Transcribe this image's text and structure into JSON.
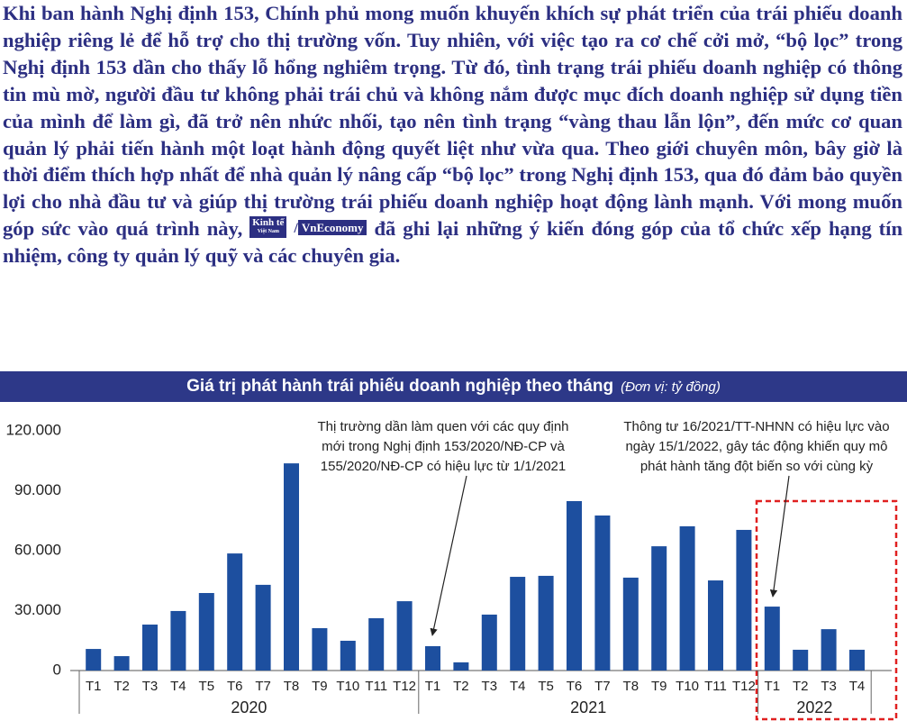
{
  "paragraph": {
    "before": "Khi ban hành Nghị định 153, Chính phủ mong muốn khuyến khích sự phát triển của trái phiếu doanh nghiệp riêng lẻ để hỗ trợ cho thị trường vốn. Tuy nhiên, với việc tạo ra cơ chế cởi mở, “bộ lọc” trong Nghị định 153 dần cho thấy lỗ hổng nghiêm trọng. Từ đó, tình trạng trái phiếu doanh nghiệp có thông tin mù mờ, người đầu tư không phải trái chủ và không nắm được mục đích doanh nghiệp sử dụng tiền của mình để làm gì, đã trở nên nhức nhối, tạo nên tình trạng “vàng thau lẫn lộn”, đến mức cơ quan quản lý phải tiến hành một loạt hành động quyết liệt như vừa qua. Theo giới chuyên môn, bây giờ là thời điểm thích hợp nhất để nhà quản lý nâng cấp “bộ lọc” trong Nghị định 153, qua đó đảm bảo quyền lợi cho nhà đầu tư và giúp thị trường trái phiếu doanh nghiệp hoạt động lành mạnh. Với mong muốn góp sức vào quá trình này,",
    "logo1_top": "Kinh tế",
    "logo1_bottom": "Việt Nam",
    "slash": "/",
    "logo2": "VnEconomy",
    "after": "đã ghi lại những ý kiến đóng góp của tổ chức xếp hạng tín nhiệm, công ty quản lý quỹ và các chuyên gia."
  },
  "chart_data": {
    "type": "bar",
    "title": "Giá trị phát hành trái phiếu doanh nghiệp theo tháng",
    "subtitle": "(Đơn vị: tỷ đồng)",
    "color": "#1d4f9f",
    "groups": [
      {
        "label": "2020",
        "categories": [
          "T1",
          "T2",
          "T3",
          "T4",
          "T5",
          "T6",
          "T7",
          "T8",
          "T9",
          "T10",
          "T11",
          "T12"
        ],
        "values": [
          10800,
          7200,
          23000,
          29800,
          38800,
          58600,
          42900,
          103700,
          21200,
          14900,
          26200,
          34700
        ]
      },
      {
        "label": "2021",
        "categories": [
          "T1",
          "T2",
          "T3",
          "T4",
          "T5",
          "T6",
          "T7",
          "T8",
          "T9",
          "T10",
          "T11",
          "T12"
        ],
        "values": [
          12200,
          4100,
          28000,
          46900,
          47400,
          84800,
          77600,
          46500,
          62200,
          72200,
          45100,
          70400
        ]
      },
      {
        "label": "2022",
        "categories": [
          "T1",
          "T2",
          "T3",
          "T4"
        ],
        "values": [
          32000,
          10400,
          20700,
          10400
        ]
      }
    ],
    "ylim": [
      0,
      120000
    ],
    "yticks": [
      0,
      {
        "value": 30000,
        "label": "30.000"
      },
      {
        "value": 60000,
        "label": "60.000"
      },
      {
        "value": 90000,
        "label": "90.000"
      },
      {
        "value": 120000,
        "label": "120.000"
      }
    ],
    "grid": false,
    "annotations": [
      [
        "Thị trường dần làm quen với các quy định",
        "mới trong Nghị định 153/2020/NĐ-CP và",
        "155/2020/NĐ-CP có hiệu lực từ 1/1/2021"
      ],
      [
        "Thông tư 16/2021/TT-NHNN có hiệu lực vào",
        "ngày 15/1/2022, gây tác động khiến quy mô",
        "phát hành tăng đột biến so với cùng kỳ"
      ]
    ]
  }
}
